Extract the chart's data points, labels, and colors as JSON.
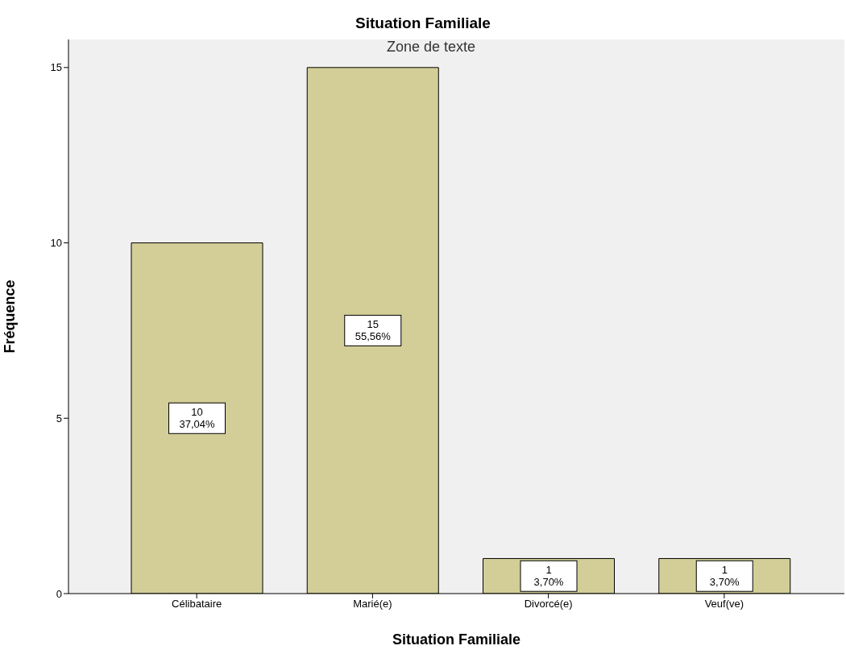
{
  "chart_data": {
    "type": "bar",
    "title": "Situation Familiale",
    "xlabel": "Situation Familiale",
    "ylabel": "Fréquence",
    "annotations": [
      "Zone de texte"
    ],
    "categories": [
      "Célibataire",
      "Marié(e)",
      "Divorcé(e)",
      "Veuf(ve)"
    ],
    "values": [
      10,
      15,
      1,
      1
    ],
    "color": "#d3ce97",
    "value_labels": [
      "10\n37,04%",
      "15\n55,56%",
      "1\n3,70%",
      "1\n3,70%"
    ],
    "ylim": [
      0,
      15.8
    ],
    "yticks": [
      0,
      5,
      10,
      15
    ]
  }
}
